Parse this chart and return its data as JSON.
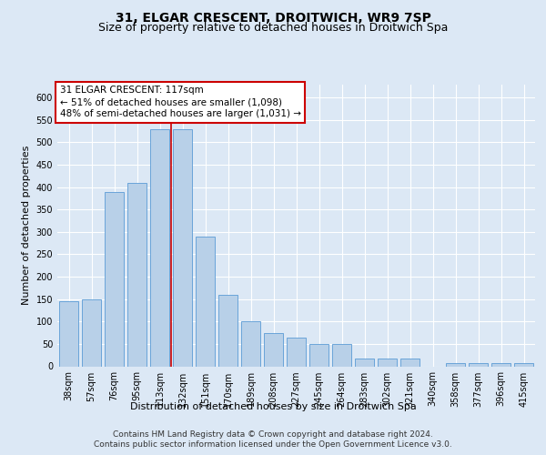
{
  "title": "31, ELGAR CRESCENT, DROITWICH, WR9 7SP",
  "subtitle": "Size of property relative to detached houses in Droitwich Spa",
  "xlabel": "Distribution of detached houses by size in Droitwich Spa",
  "ylabel": "Number of detached properties",
  "categories": [
    "38sqm",
    "57sqm",
    "76sqm",
    "95sqm",
    "113sqm",
    "132sqm",
    "151sqm",
    "170sqm",
    "189sqm",
    "208sqm",
    "227sqm",
    "245sqm",
    "264sqm",
    "283sqm",
    "302sqm",
    "321sqm",
    "340sqm",
    "358sqm",
    "377sqm",
    "396sqm",
    "415sqm"
  ],
  "values": [
    145,
    150,
    390,
    410,
    530,
    530,
    290,
    160,
    100,
    75,
    65,
    50,
    50,
    18,
    18,
    18,
    0,
    8,
    8,
    8,
    8
  ],
  "bar_color": "#b8d0e8",
  "bar_edge_color": "#5b9bd5",
  "red_line_x": 4.5,
  "annotation_line1": "31 ELGAR CRESCENT: 117sqm",
  "annotation_line2": "← 51% of detached houses are smaller (1,098)",
  "annotation_line3": "48% of semi-detached houses are larger (1,031) →",
  "ylim": [
    0,
    630
  ],
  "yticks": [
    0,
    50,
    100,
    150,
    200,
    250,
    300,
    350,
    400,
    450,
    500,
    550,
    600
  ],
  "background_color": "#dce8f5",
  "plot_bg_color": "#dce8f5",
  "footer_line1": "Contains HM Land Registry data © Crown copyright and database right 2024.",
  "footer_line2": "Contains public sector information licensed under the Open Government Licence v3.0.",
  "annotation_box_color": "#ffffff",
  "annotation_box_edge": "#cc0000",
  "title_fontsize": 10,
  "subtitle_fontsize": 9,
  "axis_label_fontsize": 8,
  "tick_fontsize": 7,
  "annotation_fontsize": 7.5,
  "footer_fontsize": 6.5,
  "grid_color": "#ffffff"
}
